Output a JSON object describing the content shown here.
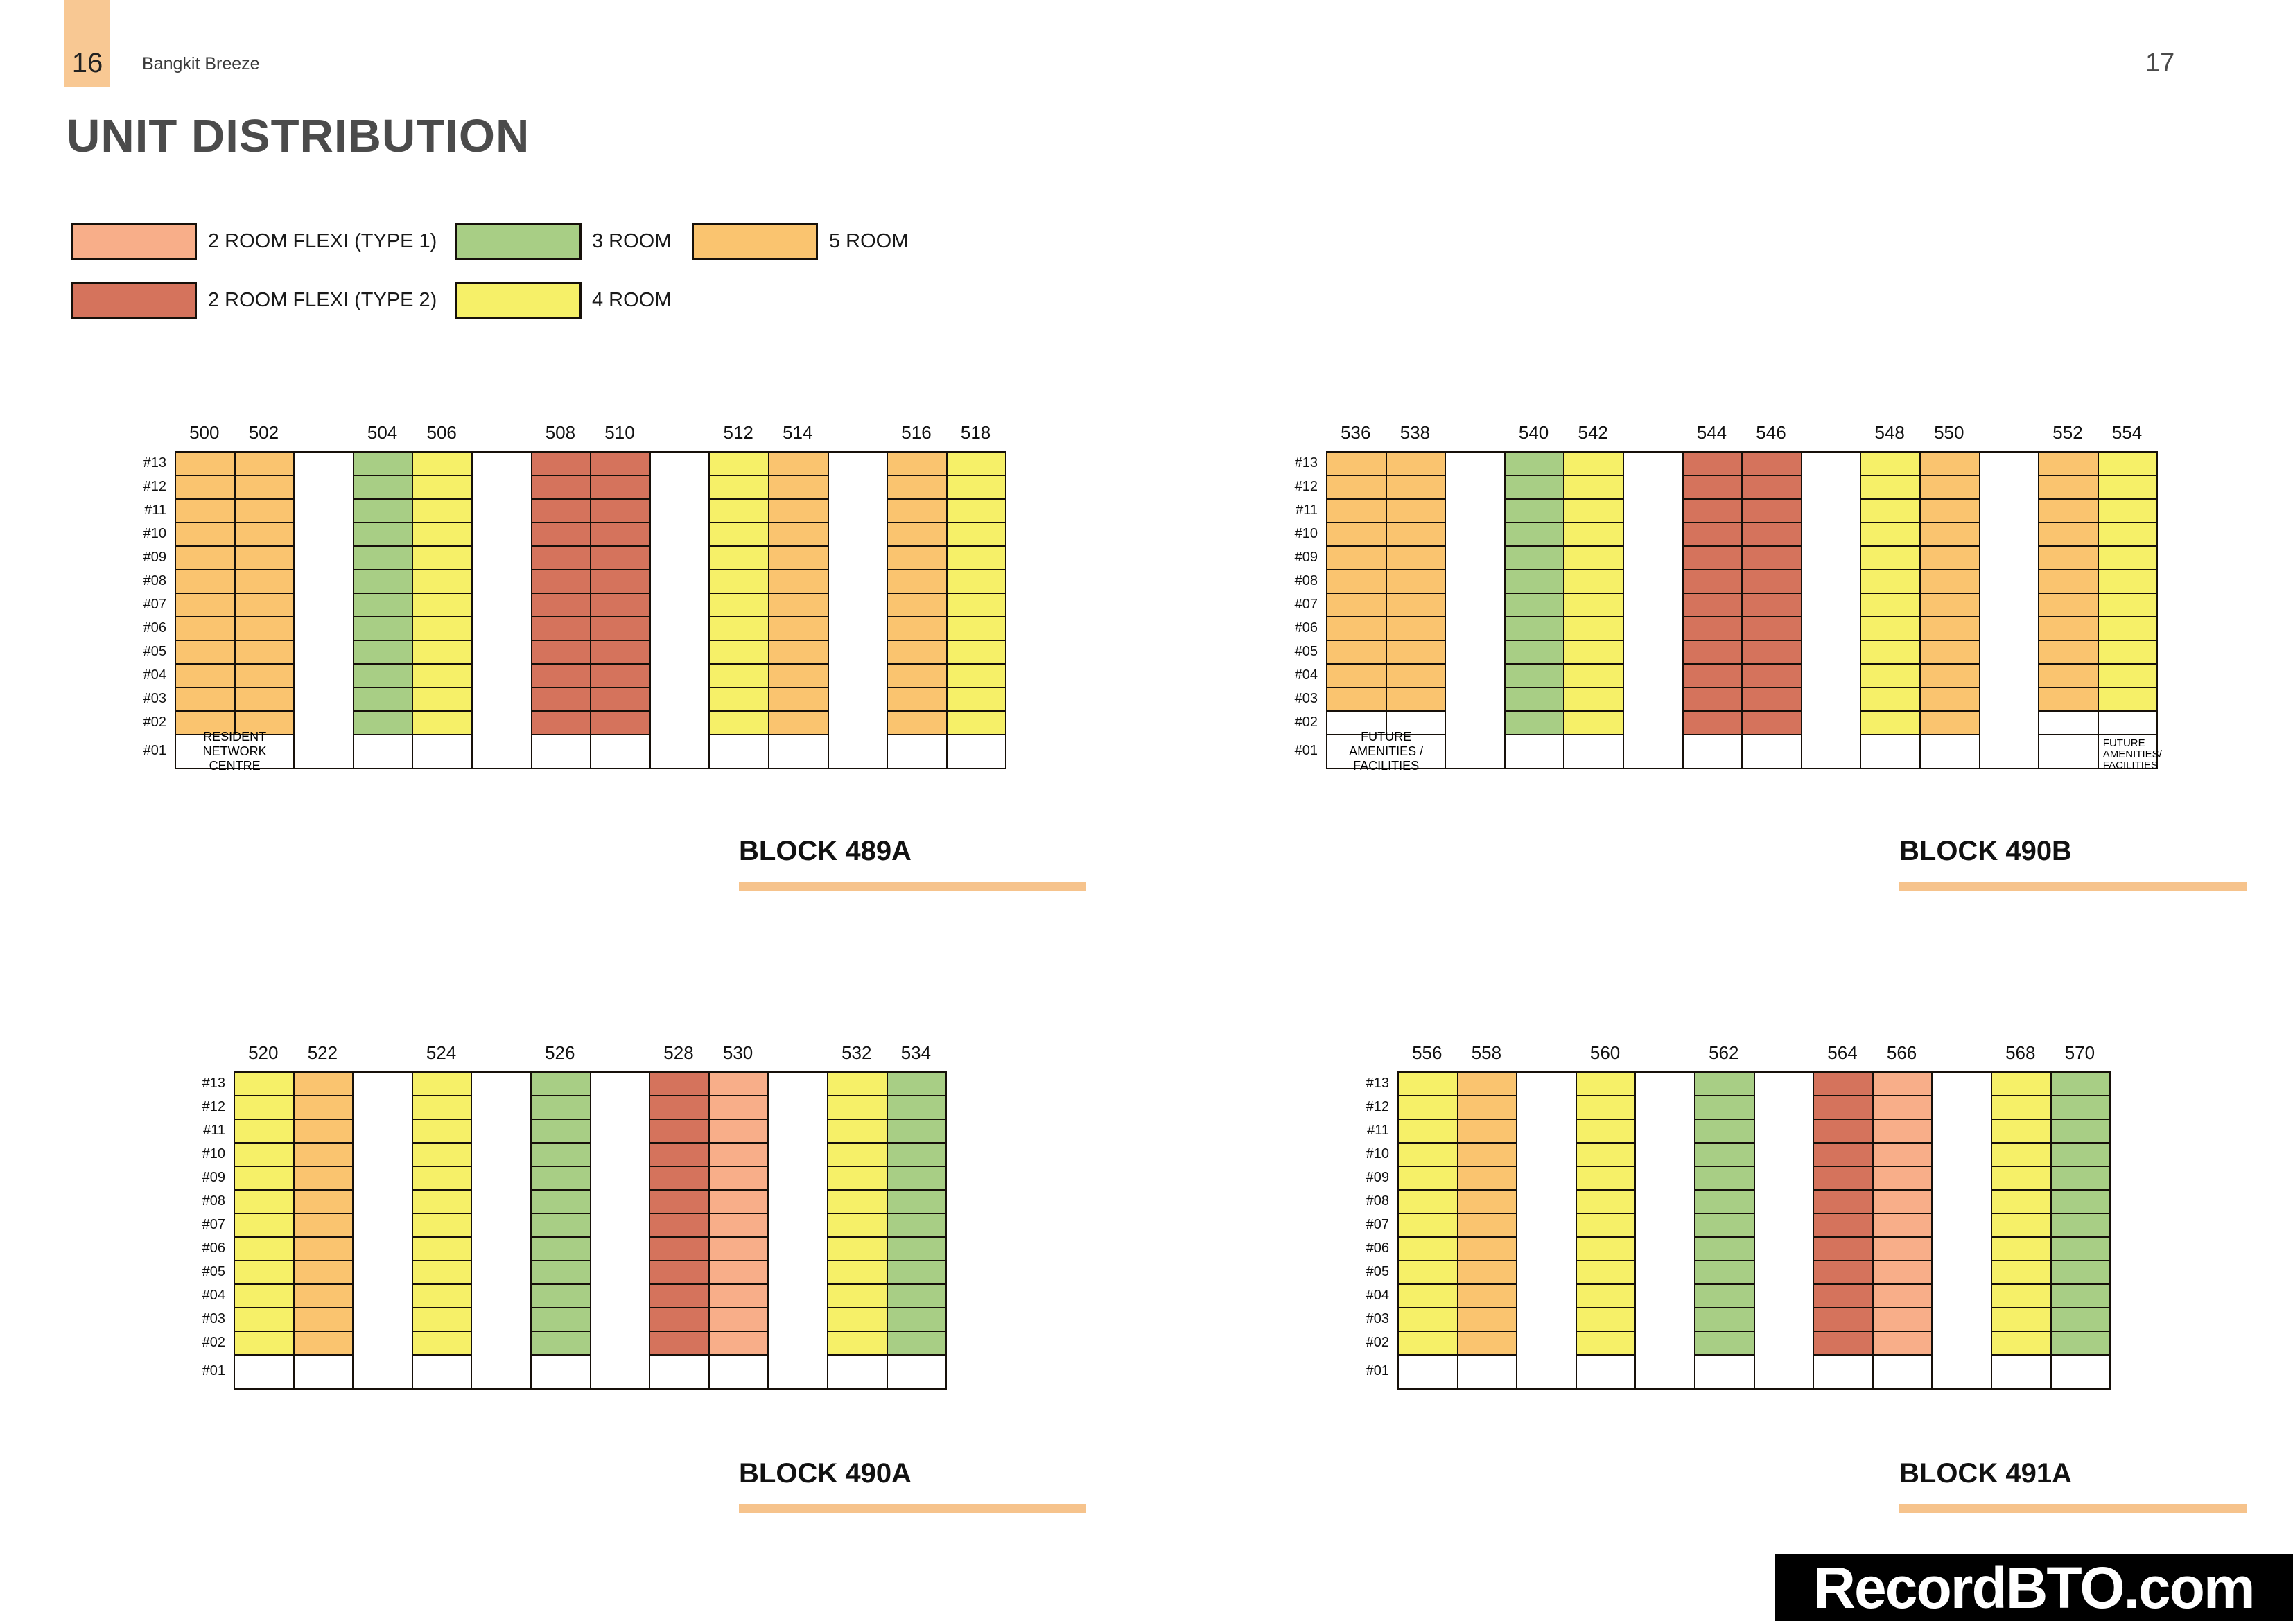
{
  "page": {
    "left_page_number": "16",
    "project_name": "Bangkit Breeze",
    "right_page_number": "17",
    "title": "UNIT DISTRIBUTION",
    "watermark": "RecordBTO.com"
  },
  "colors": {
    "header_box": "#F8C893",
    "accent_bar": "#F6C38C",
    "grid_border": "#16100A",
    "room_2_flexi_1": "#F8AE89",
    "room_2_flexi_2": "#D5735C",
    "room_3": "#A8CE85",
    "room_4": "#F6F068",
    "room_5": "#FAC46F"
  },
  "room_types": {
    "room_2_flexi_1": {
      "label": "2 ROOM FLEXI (TYPE 1)"
    },
    "room_2_flexi_2": {
      "label": "2 ROOM FLEXI (TYPE 2)"
    },
    "room_3": {
      "label": "3 ROOM"
    },
    "room_4": {
      "label": "4 ROOM"
    },
    "room_5": {
      "label": "5 ROOM"
    }
  },
  "floors": [
    "#13",
    "#12",
    "#11",
    "#10",
    "#09",
    "#08",
    "#07",
    "#06",
    "#05",
    "#04",
    "#03",
    "#02",
    "#01"
  ],
  "blocks": [
    {
      "name": "BLOCK 489A",
      "layout": [
        {
          "unit": "500",
          "room": "room_5",
          "lowest_floor": 2
        },
        {
          "unit": "502",
          "room": "room_5",
          "lowest_floor": 2
        },
        {
          "gap": true
        },
        {
          "unit": "504",
          "room": "room_3",
          "lowest_floor": 2
        },
        {
          "unit": "506",
          "room": "room_4",
          "lowest_floor": 2
        },
        {
          "gap": true
        },
        {
          "unit": "508",
          "room": "room_2_flexi_2",
          "lowest_floor": 2
        },
        {
          "unit": "510",
          "room": "room_2_flexi_2",
          "lowest_floor": 2
        },
        {
          "gap": true
        },
        {
          "unit": "512",
          "room": "room_4",
          "lowest_floor": 2
        },
        {
          "unit": "514",
          "room": "room_5",
          "lowest_floor": 2
        },
        {
          "gap": true
        },
        {
          "unit": "516",
          "room": "room_5",
          "lowest_floor": 2
        },
        {
          "unit": "518",
          "room": "room_4",
          "lowest_floor": 2
        }
      ],
      "ground_labels": [
        {
          "lines": [
            "RESIDENT NETWORK",
            "CENTRE"
          ],
          "from": "500",
          "to": "502",
          "align": "center"
        }
      ]
    },
    {
      "name": "BLOCK 490B",
      "layout": [
        {
          "unit": "536",
          "room": "room_5",
          "lowest_floor": 3
        },
        {
          "unit": "538",
          "room": "room_5",
          "lowest_floor": 3
        },
        {
          "gap": true
        },
        {
          "unit": "540",
          "room": "room_3",
          "lowest_floor": 2
        },
        {
          "unit": "542",
          "room": "room_4",
          "lowest_floor": 2
        },
        {
          "gap": true
        },
        {
          "unit": "544",
          "room": "room_2_flexi_2",
          "lowest_floor": 2
        },
        {
          "unit": "546",
          "room": "room_2_flexi_2",
          "lowest_floor": 2
        },
        {
          "gap": true
        },
        {
          "unit": "548",
          "room": "room_4",
          "lowest_floor": 2
        },
        {
          "unit": "550",
          "room": "room_5",
          "lowest_floor": 2
        },
        {
          "gap": true
        },
        {
          "unit": "552",
          "room": "room_5",
          "lowest_floor": 3
        },
        {
          "unit": "554",
          "room": "room_4",
          "lowest_floor": 3
        }
      ],
      "ground_labels": [
        {
          "lines": [
            "FUTURE",
            "AMENITIES / FACILITIES"
          ],
          "from": "536",
          "to": "538",
          "align": "center"
        },
        {
          "lines": [
            "FUTURE",
            "AMENITIES/",
            "FACILITIES"
          ],
          "from": "554",
          "to": "554",
          "align": "left"
        }
      ]
    },
    {
      "name": "BLOCK 490A",
      "layout": [
        {
          "unit": "520",
          "room": "room_4",
          "lowest_floor": 2
        },
        {
          "unit": "522",
          "room": "room_5",
          "lowest_floor": 2
        },
        {
          "gap": true
        },
        {
          "unit": "524",
          "room": "room_4",
          "lowest_floor": 2
        },
        {
          "gap": true
        },
        {
          "unit": "526",
          "room": "room_3",
          "lowest_floor": 2
        },
        {
          "gap": true
        },
        {
          "unit": "528",
          "room": "room_2_flexi_2",
          "lowest_floor": 2
        },
        {
          "unit": "530",
          "room": "room_2_flexi_1",
          "lowest_floor": 2
        },
        {
          "gap": true
        },
        {
          "unit": "532",
          "room": "room_4",
          "lowest_floor": 2
        },
        {
          "unit": "534",
          "room": "room_3",
          "lowest_floor": 2
        }
      ],
      "ground_labels": []
    },
    {
      "name": "BLOCK 491A",
      "layout": [
        {
          "unit": "556",
          "room": "room_4",
          "lowest_floor": 2
        },
        {
          "unit": "558",
          "room": "room_5",
          "lowest_floor": 2
        },
        {
          "gap": true
        },
        {
          "unit": "560",
          "room": "room_4",
          "lowest_floor": 2
        },
        {
          "gap": true
        },
        {
          "unit": "562",
          "room": "room_3",
          "lowest_floor": 2
        },
        {
          "gap": true
        },
        {
          "unit": "564",
          "room": "room_2_flexi_2",
          "lowest_floor": 2
        },
        {
          "unit": "566",
          "room": "room_2_flexi_1",
          "lowest_floor": 2
        },
        {
          "gap": true
        },
        {
          "unit": "568",
          "room": "room_4",
          "lowest_floor": 2
        },
        {
          "unit": "570",
          "room": "room_3",
          "lowest_floor": 2
        }
      ],
      "ground_labels": []
    }
  ]
}
